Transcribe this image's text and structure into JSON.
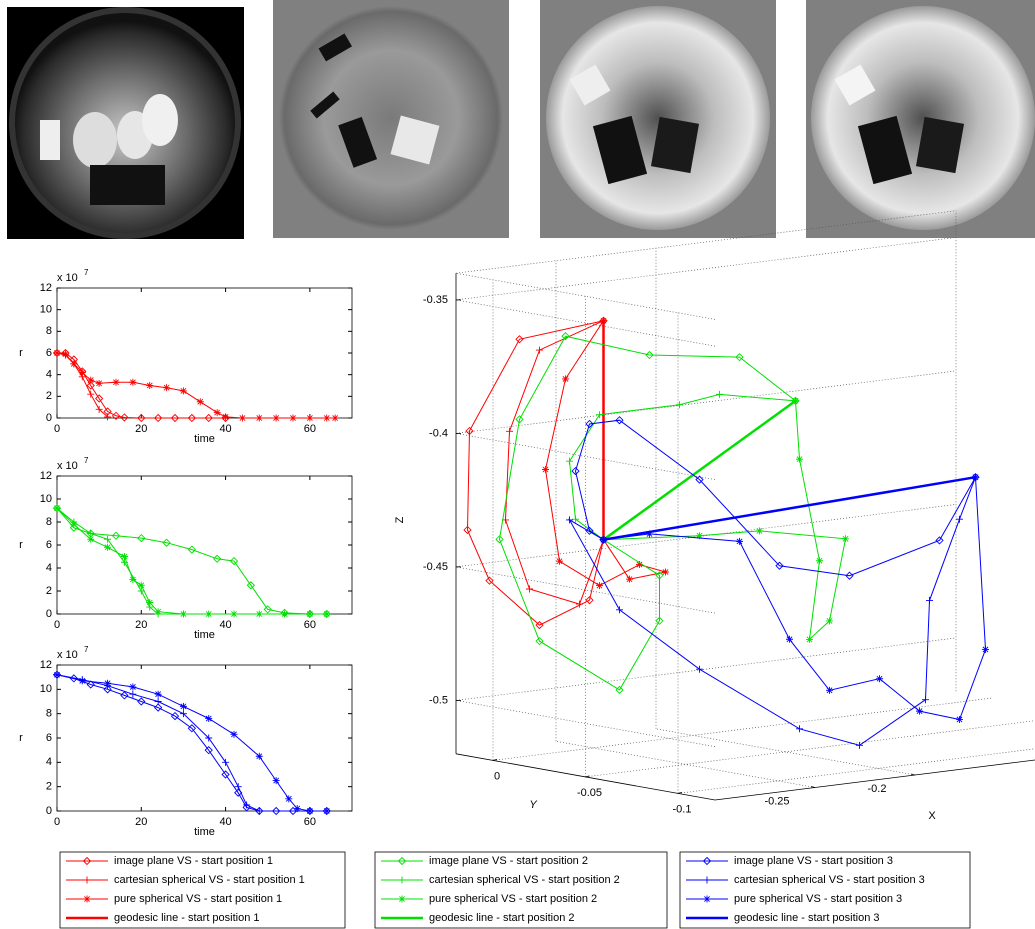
{
  "chart_data": [
    {
      "type": "line",
      "xlabel": "time",
      "ylabel": "r",
      "y_scale": "x 10",
      "y_scale_exponent": "7",
      "xlim": [
        0,
        70
      ],
      "ylim": [
        0,
        12
      ],
      "xticks": [
        0,
        20,
        40,
        60
      ],
      "yticks": [
        0,
        2,
        4,
        6,
        8,
        10,
        12
      ],
      "series": [
        {
          "color": "#ff0000",
          "marker": "diamond",
          "x": [
            0,
            2,
            4,
            6,
            8,
            10,
            12,
            14,
            16,
            20,
            24,
            28,
            32,
            36,
            40
          ],
          "values": [
            6,
            6,
            5.4,
            4.3,
            3,
            1.8,
            0.6,
            0.2,
            0.05,
            0,
            0,
            0,
            0,
            0,
            0
          ]
        },
        {
          "color": "#ff0000",
          "marker": "plus",
          "x": [
            0,
            2,
            4,
            6,
            8,
            10,
            12
          ],
          "values": [
            6,
            5.8,
            5,
            3.8,
            2.2,
            0.8,
            0.1
          ]
        },
        {
          "color": "#ff0000",
          "marker": "star",
          "x": [
            0,
            2,
            4,
            6,
            8,
            10,
            14,
            18,
            22,
            26,
            30,
            34,
            38,
            40,
            44,
            48,
            52,
            56,
            60,
            64,
            66
          ],
          "values": [
            6,
            5.9,
            5,
            4.2,
            3.5,
            3.2,
            3.3,
            3.3,
            3,
            2.8,
            2.5,
            1.5,
            0.5,
            0.1,
            0,
            0,
            0,
            0,
            0,
            0,
            0
          ]
        }
      ]
    },
    {
      "type": "line",
      "xlabel": "time",
      "ylabel": "r",
      "y_scale": "x 10",
      "y_scale_exponent": "7",
      "xlim": [
        0,
        70
      ],
      "ylim": [
        0,
        12
      ],
      "xticks": [
        0,
        20,
        40,
        60
      ],
      "yticks": [
        0,
        2,
        4,
        6,
        8,
        10,
        12
      ],
      "series": [
        {
          "color": "#00e000",
          "marker": "diamond",
          "x": [
            0,
            4,
            8,
            14,
            20,
            26,
            32,
            38,
            42,
            46,
            50,
            54,
            60,
            64
          ],
          "values": [
            9.2,
            7.5,
            7,
            6.8,
            6.6,
            6.2,
            5.6,
            4.8,
            4.6,
            2.5,
            0.4,
            0.1,
            0,
            0
          ]
        },
        {
          "color": "#00e000",
          "marker": "plus",
          "x": [
            0,
            4,
            8,
            12,
            16,
            20,
            22,
            24,
            30
          ],
          "values": [
            9.2,
            8,
            7,
            6.5,
            4.5,
            2,
            0.6,
            0,
            0
          ]
        },
        {
          "color": "#00e000",
          "marker": "star",
          "x": [
            0,
            4,
            8,
            12,
            16,
            18,
            20,
            22,
            24,
            30,
            36,
            42,
            48,
            54,
            60,
            64
          ],
          "values": [
            9.2,
            7.8,
            6.5,
            5.8,
            5,
            3,
            2.5,
            1,
            0.2,
            0,
            0,
            0,
            0,
            0,
            0,
            0
          ]
        }
      ]
    },
    {
      "type": "line",
      "xlabel": "time",
      "ylabel": "r",
      "y_scale": "x 10",
      "y_scale_exponent": "7",
      "xlim": [
        0,
        70
      ],
      "ylim": [
        0,
        12
      ],
      "xticks": [
        0,
        20,
        40,
        60
      ],
      "yticks": [
        0,
        2,
        4,
        6,
        8,
        10,
        12
      ],
      "series": [
        {
          "color": "#0000ff",
          "marker": "diamond",
          "x": [
            0,
            4,
            8,
            12,
            16,
            20,
            24,
            28,
            32,
            36,
            40,
            43,
            45,
            48,
            52,
            56,
            60,
            64
          ],
          "values": [
            11.2,
            10.9,
            10.4,
            10,
            9.5,
            9,
            8.5,
            7.8,
            6.8,
            5,
            3,
            1.5,
            0.3,
            0,
            0,
            0,
            0,
            0
          ]
        },
        {
          "color": "#0000ff",
          "marker": "plus",
          "x": [
            0,
            6,
            12,
            18,
            24,
            30,
            36,
            40,
            43,
            45,
            48
          ],
          "values": [
            11.2,
            10.8,
            10.3,
            9.6,
            9,
            8,
            6,
            4,
            2,
            0.5,
            0
          ]
        },
        {
          "color": "#0000ff",
          "marker": "star",
          "x": [
            0,
            6,
            12,
            18,
            24,
            30,
            36,
            42,
            48,
            52,
            55,
            57,
            60,
            64
          ],
          "values": [
            11.2,
            10.7,
            10.5,
            10.2,
            9.6,
            8.6,
            7.6,
            6.3,
            4.5,
            2.5,
            1,
            0.2,
            0,
            0
          ]
        }
      ]
    },
    {
      "type": "line3d",
      "xlabel": "X",
      "ylabel": "Y",
      "zlabel": "Z",
      "grid": true,
      "legend": "below",
      "xlim": [
        -0.3,
        -0.05
      ],
      "ylim": [
        -0.12,
        0.02
      ],
      "zlim": [
        -0.52,
        -0.34
      ],
      "xticks": [
        -0.25,
        -0.2
      ],
      "yticks": [
        0,
        -0.05,
        -0.1
      ],
      "zticks": [
        -0.35,
        -0.4,
        -0.45,
        -0.5
      ],
      "series": [
        {
          "name": "image plane VS - start position 1",
          "color": "#ff0000",
          "marker": "diamond",
          "x": [
            -0.291,
            -0.333,
            -0.358,
            -0.359,
            -0.348,
            -0.323,
            -0.298,
            -0.291
          ],
          "y": [
            -0.05,
            -0.05,
            -0.05,
            -0.05,
            -0.05,
            -0.05,
            -0.05,
            -0.05
          ],
          "z": [
            -0.35,
            -0.353,
            -0.385,
            -0.422,
            -0.442,
            -0.461,
            -0.454,
            -0.432
          ]
        },
        {
          "name": "cartesian spherical VS - start position 1",
          "color": "#ff0000",
          "marker": "plus",
          "x": [
            -0.291,
            -0.323,
            -0.338,
            -0.34,
            -0.328,
            -0.303,
            -0.291
          ],
          "y": [
            -0.05,
            -0.05,
            -0.05,
            -0.05,
            -0.05,
            -0.05,
            -0.05
          ],
          "z": [
            -0.35,
            -0.358,
            -0.387,
            -0.42,
            -0.447,
            -0.455,
            -0.432
          ]
        },
        {
          "name": "pure spherical VS - start position 1",
          "color": "#ff0000",
          "marker": "star",
          "x": [
            -0.291,
            -0.31,
            -0.32,
            -0.313,
            -0.293,
            -0.273,
            -0.26,
            -0.278,
            -0.291
          ],
          "y": [
            -0.05,
            -0.05,
            -0.05,
            -0.05,
            -0.05,
            -0.05,
            -0.05,
            -0.05,
            -0.05
          ],
          "z": [
            -0.35,
            -0.37,
            -0.403,
            -0.438,
            -0.449,
            -0.443,
            -0.447,
            -0.448,
            -0.432
          ]
        },
        {
          "name": "geodesic line - start position 1",
          "color": "#ff0000",
          "marker": "none",
          "line_width": 2.5,
          "x": [
            -0.291,
            -0.291
          ],
          "y": [
            -0.05,
            -0.05
          ],
          "z": [
            -0.35,
            -0.432
          ]
        },
        {
          "name": "image plane VS - start position 2",
          "color": "#00e000",
          "marker": "diamond",
          "x": [
            -0.195,
            -0.223,
            -0.268,
            -0.31,
            -0.333,
            -0.343,
            -0.323,
            -0.283,
            -0.263,
            -0.263,
            -0.291
          ],
          "y": [
            -0.05,
            -0.05,
            -0.05,
            -0.05,
            -0.05,
            -0.05,
            -0.05,
            -0.05,
            -0.05,
            -0.05,
            -0.05
          ],
          "z": [
            -0.389,
            -0.37,
            -0.365,
            -0.354,
            -0.383,
            -0.427,
            -0.467,
            -0.489,
            -0.465,
            -0.448,
            -0.432
          ]
        },
        {
          "name": "cartesian spherical VS - start position 2",
          "color": "#00e000",
          "marker": "plus",
          "x": [
            -0.195,
            -0.233,
            -0.253,
            -0.293,
            -0.308,
            -0.305,
            -0.291
          ],
          "y": [
            -0.05,
            -0.05,
            -0.05,
            -0.05,
            -0.05,
            -0.05,
            -0.05
          ],
          "z": [
            -0.389,
            -0.383,
            -0.385,
            -0.385,
            -0.401,
            -0.423,
            -0.432
          ]
        },
        {
          "name": "pure spherical VS - start position 2",
          "color": "#00e000",
          "marker": "star",
          "x": [
            -0.195,
            -0.193,
            -0.183,
            -0.188,
            -0.178,
            -0.17,
            -0.213,
            -0.243,
            -0.291
          ],
          "y": [
            -0.05,
            -0.05,
            -0.05,
            -0.05,
            -0.05,
            -0.05,
            -0.05,
            -0.05,
            -0.05
          ],
          "z": [
            -0.389,
            -0.411,
            -0.45,
            -0.479,
            -0.473,
            -0.443,
            -0.436,
            -0.435,
            -0.432
          ]
        },
        {
          "name": "geodesic line - start position 2",
          "color": "#00e000",
          "marker": "none",
          "line_width": 2.5,
          "x": [
            -0.195,
            -0.291
          ],
          "y": [
            -0.05,
            -0.05
          ],
          "z": [
            -0.389,
            -0.432
          ]
        },
        {
          "name": "image plane VS - start position 3",
          "color": "#0000ff",
          "marker": "diamond",
          "x": [
            -0.105,
            -0.123,
            -0.168,
            -0.203,
            -0.243,
            -0.283,
            -0.298,
            -0.305,
            -0.298,
            -0.291
          ],
          "y": [
            -0.05,
            -0.05,
            -0.05,
            -0.05,
            -0.05,
            -0.05,
            -0.05,
            -0.05,
            -0.05,
            -0.05
          ],
          "z": [
            -0.426,
            -0.448,
            -0.457,
            -0.45,
            -0.414,
            -0.388,
            -0.388,
            -0.405,
            -0.428,
            -0.432
          ]
        },
        {
          "name": "cartesian spherical VS - start position 3",
          "color": "#0000ff",
          "marker": "plus",
          "x": [
            -0.105,
            -0.113,
            -0.128,
            -0.13,
            -0.163,
            -0.193,
            -0.243,
            -0.283,
            -0.308,
            -0.291
          ],
          "y": [
            -0.05,
            -0.05,
            -0.05,
            -0.05,
            -0.05,
            -0.05,
            -0.05,
            -0.05,
            -0.05,
            -0.05
          ],
          "z": [
            -0.426,
            -0.441,
            -0.47,
            -0.507,
            -0.521,
            -0.512,
            -0.485,
            -0.459,
            -0.423,
            -0.432
          ]
        },
        {
          "name": "pure spherical VS - start position 3",
          "color": "#0000ff",
          "marker": "star",
          "x": [
            -0.105,
            -0.1,
            -0.113,
            -0.133,
            -0.153,
            -0.178,
            -0.198,
            -0.223,
            -0.268,
            -0.291
          ],
          "y": [
            -0.05,
            -0.05,
            -0.05,
            -0.05,
            -0.05,
            -0.05,
            -0.05,
            -0.05,
            -0.05,
            -0.05
          ],
          "z": [
            -0.426,
            -0.491,
            -0.516,
            -0.511,
            -0.497,
            -0.499,
            -0.478,
            -0.439,
            -0.432,
            -0.432
          ]
        },
        {
          "name": "geodesic line - start position 3",
          "color": "#0000ff",
          "marker": "none",
          "line_width": 2.5,
          "x": [
            -0.105,
            -0.291
          ],
          "y": [
            -0.05,
            -0.05
          ],
          "z": [
            -0.426,
            -0.432
          ]
        }
      ]
    }
  ]
}
